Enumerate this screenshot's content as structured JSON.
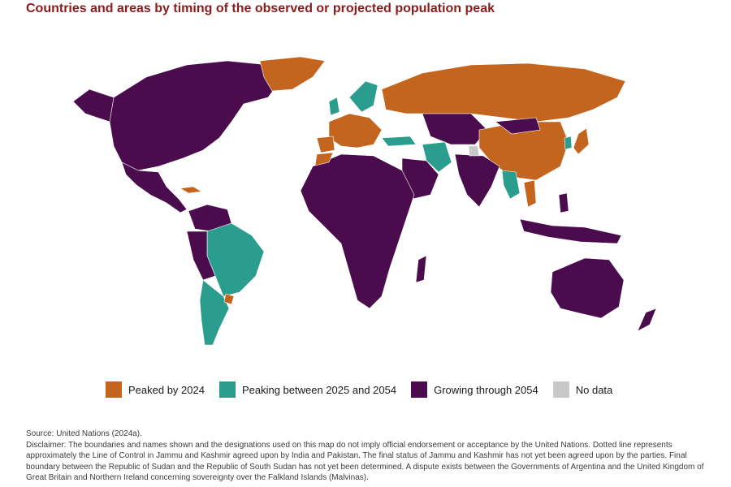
{
  "title": "Countries and areas by timing of the observed or projected population peak",
  "colors": {
    "peaked": "#c4651f",
    "peaking": "#2a9d8f",
    "growing": "#4b0c4e",
    "nodata": "#c8c8c8"
  },
  "legend": [
    {
      "key": "peaked",
      "label": "Peaked by 2024"
    },
    {
      "key": "peaking",
      "label": "Peaking between 2025 and 2054"
    },
    {
      "key": "growing",
      "label": "Growing through 2054"
    },
    {
      "key": "nodata",
      "label": "No data"
    }
  ],
  "source": "Source: United Nations (2024a).",
  "disclaimer": "Disclaimer: The boundaries and names shown and the designations used on this map do not imply official endorsement or acceptance by the United Nations. Dotted line represents approximately the Line of Control in Jammu and Kashmir agreed upon by India and Pakistan. The final status of Jammu and Kashmir has not yet been agreed upon by the parties. Final boundary between the Republic of Sudan and the Republic of South Sudan has not yet been determined. A dispute exists between the Governments of Argentina and the United Kingdom of Great Britain and Northern Ireland concerning sovereignty over the Falkland Islands (Malvinas)."
}
